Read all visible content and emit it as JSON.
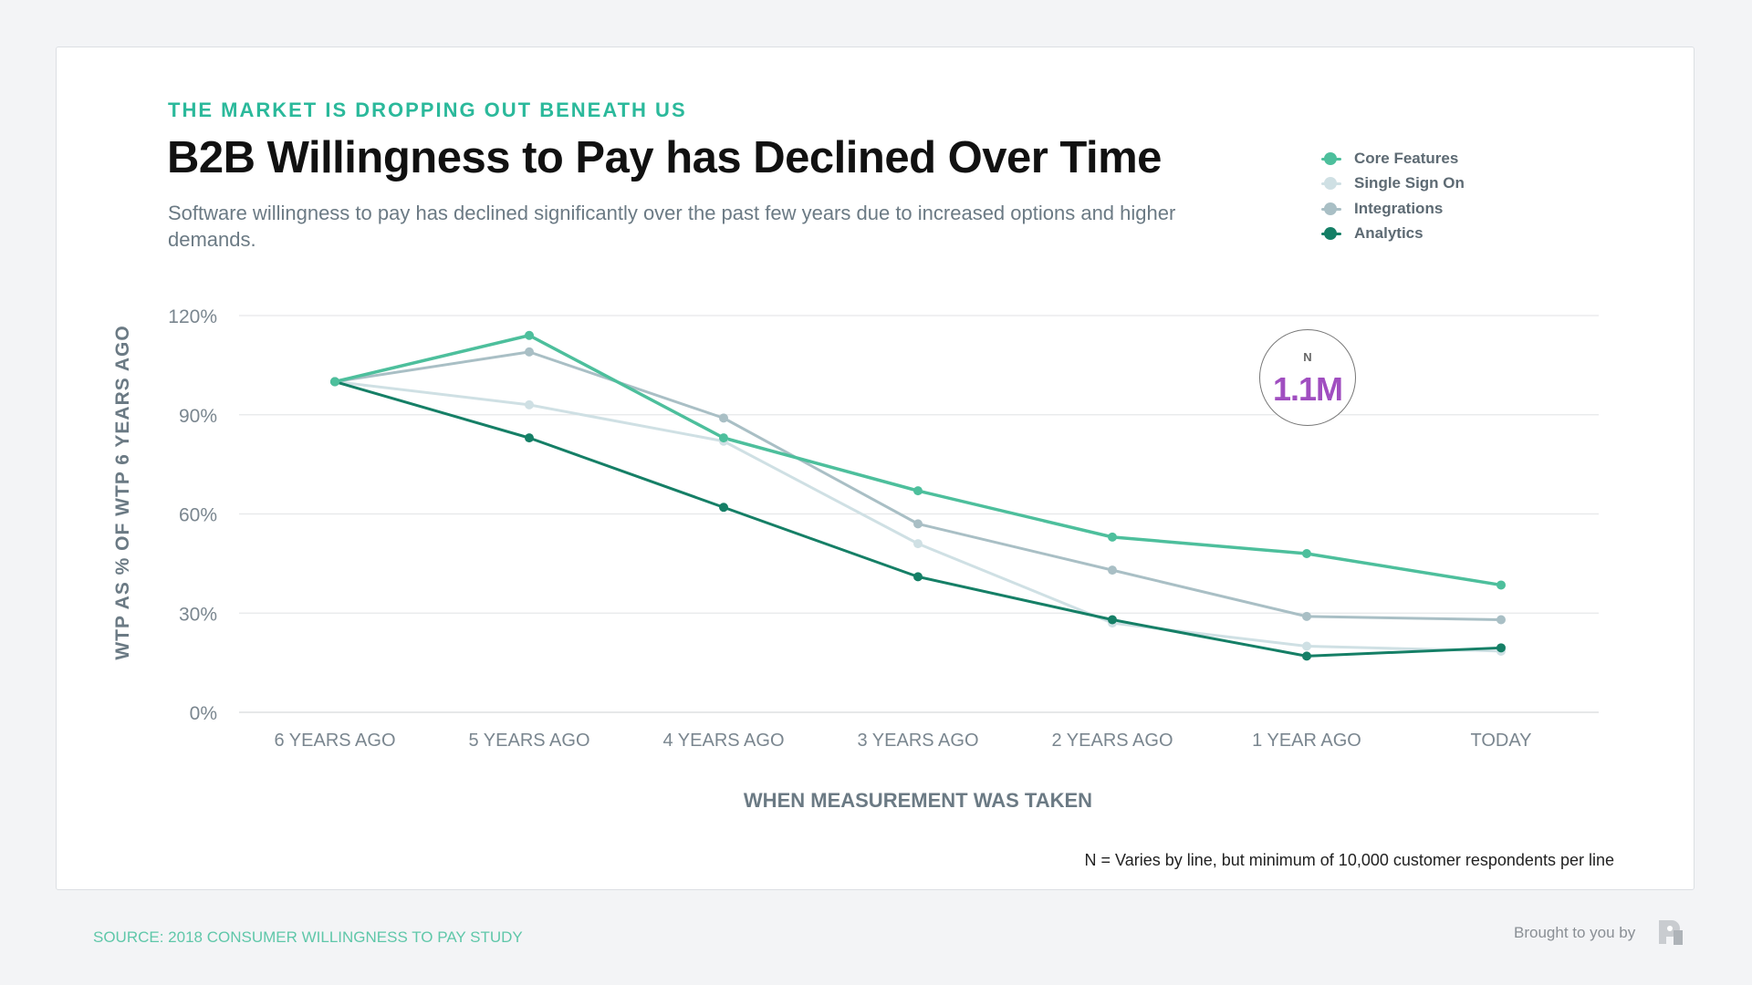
{
  "header": {
    "kicker": "THE MARKET IS DROPPING OUT BENEATH US",
    "title": "B2B Willingness to Pay has Declined Over Time",
    "subtitle": "Software willingness to pay has declined significantly over the past few years due to increased options and higher demands."
  },
  "badge": {
    "label": "N",
    "value": "1.1M",
    "color": "#a04ec0"
  },
  "footnote": "N = Varies by line, but minimum of 10,000 customer respondents per line",
  "footer": {
    "source": "SOURCE: 2018 CONSUMER WILLINGNESS TO PAY STUDY",
    "brought_by": "Brought to you by",
    "logo_icon": "brand-logo-icon"
  },
  "chart_data": {
    "type": "line",
    "xlabel": "WHEN MEASUREMENT WAS TAKEN",
    "ylabel": "WTP AS % OF WTP 6 YEARS AGO",
    "categories": [
      "6 YEARS AGO",
      "5 YEARS AGO",
      "4 YEARS AGO",
      "3 YEARS AGO",
      "2 YEARS AGO",
      "1 YEAR AGO",
      "TODAY"
    ],
    "ylim": [
      0,
      120
    ],
    "yticks": [
      0,
      30,
      60,
      90,
      120
    ],
    "ytick_labels": [
      "0%",
      "30%",
      "60%",
      "90%",
      "120%"
    ],
    "grid": true,
    "legend_position": "top-right",
    "series": [
      {
        "name": "Core Features",
        "color": "#4dbf9c",
        "values": [
          100,
          114,
          83,
          67,
          53,
          48,
          38.5
        ]
      },
      {
        "name": "Single Sign On",
        "color": "#cfe0e4",
        "values": [
          100,
          93,
          82,
          51,
          27,
          20,
          18.5
        ]
      },
      {
        "name": "Integrations",
        "color": "#a9bfc5",
        "values": [
          100,
          109,
          89,
          57,
          43,
          29,
          28
        ]
      },
      {
        "name": "Analytics",
        "color": "#157f66",
        "values": [
          100,
          83,
          62,
          41,
          28,
          17,
          19.5
        ]
      }
    ]
  }
}
